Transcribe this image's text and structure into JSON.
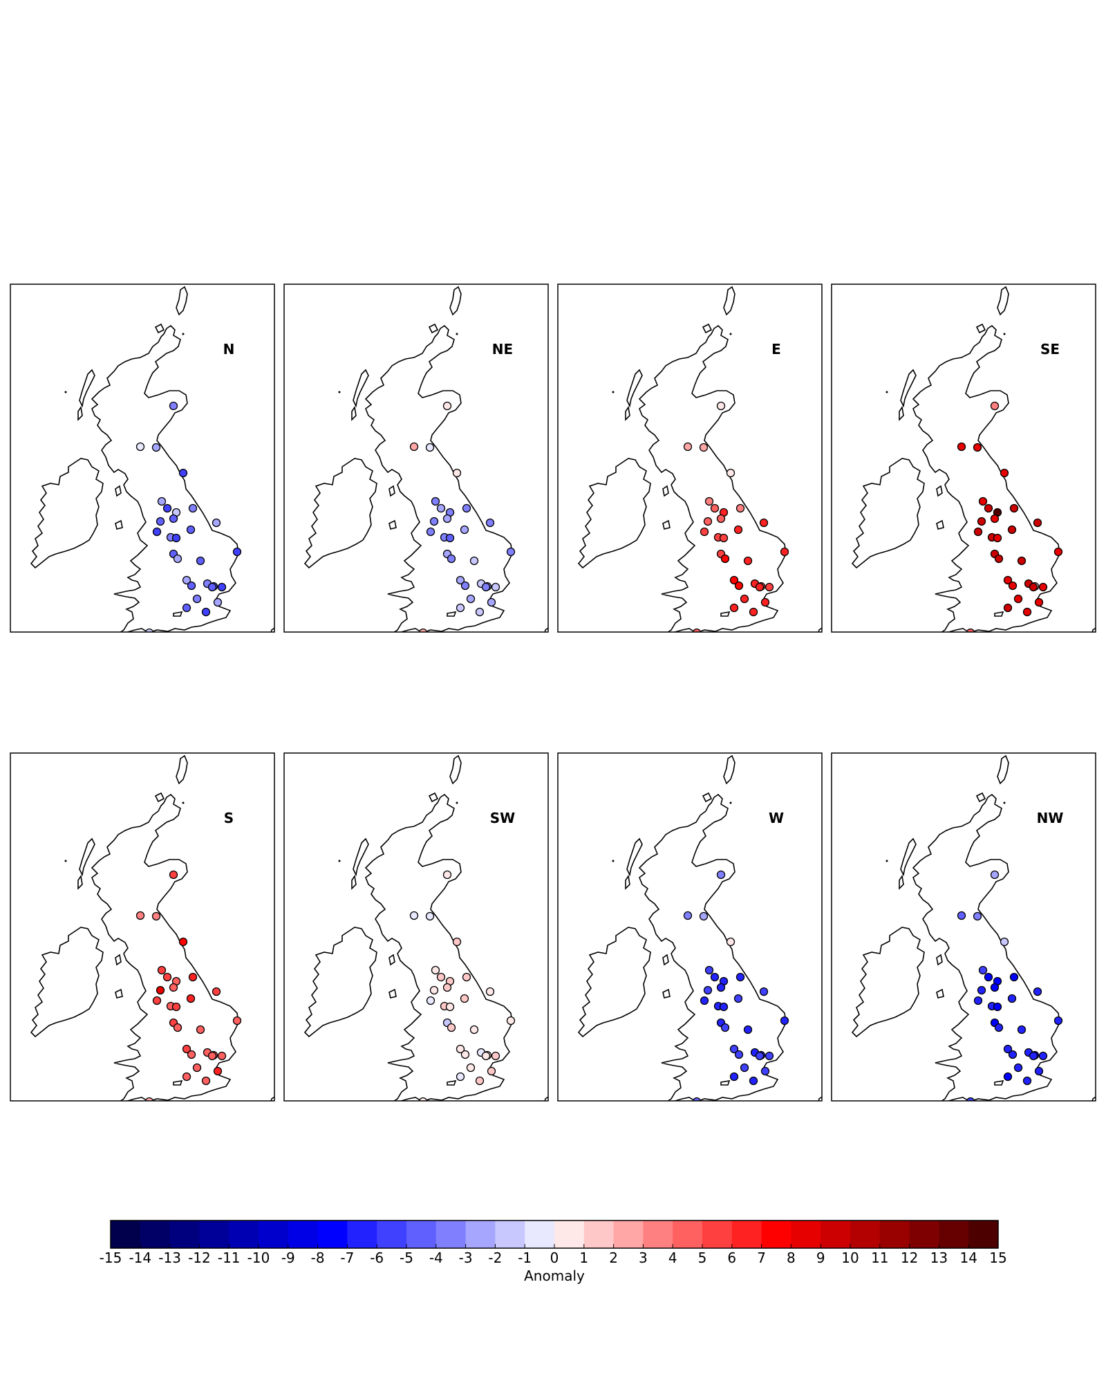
{
  "panels": [
    {
      "label": "N",
      "anomalies": [
        -4,
        -1,
        -3,
        -6,
        -3,
        -6,
        -2,
        -5,
        -5,
        -4,
        -6,
        -4,
        -6,
        -5,
        -3,
        -6,
        -5,
        -3,
        -5,
        -3,
        -5,
        -4,
        -5,
        -6,
        -5,
        -4,
        -5,
        -6,
        -3,
        -2
      ]
    },
    {
      "label": "NE",
      "anomalies": [
        0,
        2,
        -1,
        0,
        -4,
        -3,
        -4,
        -3,
        -4,
        -4,
        -4,
        -4,
        -5,
        -3,
        -4,
        -4,
        -3,
        -4,
        -2,
        -3,
        -4,
        -2,
        -3,
        -2,
        -4,
        -3,
        -2,
        -2,
        -3,
        2
      ]
    },
    {
      "label": "E",
      "anomalies": [
        0,
        2,
        2,
        0,
        3,
        4,
        6,
        4,
        4,
        3,
        5,
        5,
        5,
        6,
        6,
        6,
        5,
        7,
        6,
        7,
        7,
        6,
        4,
        5,
        6,
        6,
        6,
        6,
        6,
        4
      ]
    },
    {
      "label": "SE",
      "anomalies": [
        3,
        8,
        8,
        8,
        8,
        9,
        15,
        8,
        9,
        9,
        9,
        9,
        8,
        9,
        9,
        8,
        9,
        9,
        9,
        8,
        8,
        9,
        0,
        8,
        9,
        8,
        9,
        8,
        8,
        4
      ]
    },
    {
      "label": "S",
      "anomalies": [
        5,
        3,
        3,
        7,
        5,
        5,
        4,
        4,
        8,
        6,
        5,
        4,
        5,
        6,
        5,
        4,
        5,
        4,
        4,
        5,
        4,
        4,
        4,
        4,
        4,
        4,
        4,
        4,
        6,
        2
      ]
    },
    {
      "label": "SW",
      "anomalies": [
        0,
        -1,
        -1,
        1,
        0,
        1,
        1,
        1,
        0,
        1,
        -1,
        1,
        0,
        1,
        0,
        0,
        -2,
        1,
        0,
        0,
        0,
        -1,
        0,
        1,
        0,
        0,
        -1,
        1,
        1,
        0
      ]
    },
    {
      "label": "W",
      "anomalies": [
        -4,
        -4,
        -3,
        0,
        -6,
        -7,
        -7,
        -7,
        -6,
        -7,
        -7,
        -7,
        -7,
        -6,
        -6,
        -7,
        -7,
        -6,
        -7,
        -6,
        -6,
        -7,
        -7,
        -6,
        -6,
        -6,
        -7,
        -7,
        -6,
        -5
      ]
    },
    {
      "label": "NW",
      "anomalies": [
        -3,
        -5,
        -4,
        -2,
        -6,
        -8,
        -8,
        -8,
        -7,
        -8,
        -7,
        -7,
        -8,
        -7,
        -7,
        -7,
        -8,
        -7,
        -7,
        -7,
        -7,
        -7,
        -8,
        -7,
        -7,
        -7,
        -8,
        -7,
        -7,
        -6
      ]
    }
  ],
  "colorbar": {
    "ticks": [
      "-15",
      "-14",
      "-13",
      "-12",
      "-11",
      "-10",
      "-9",
      "-8",
      "-7",
      "-6",
      "-5",
      "-4",
      "-3",
      "-2",
      "-1",
      "0",
      "1",
      "2",
      "3",
      "4",
      "5",
      "6",
      "7",
      "8",
      "9",
      "10",
      "11",
      "12",
      "13",
      "14",
      "15"
    ],
    "colors": [
      "#00004d",
      "#000066",
      "#00007f",
      "#000099",
      "#0000b3",
      "#0000cc",
      "#0000e6",
      "#0000ff",
      "#2222ff",
      "#4040ff",
      "#6060ff",
      "#8080ff",
      "#a6a6ff",
      "#c8c8ff",
      "#e8e8ff",
      "#ffe8e8",
      "#ffc8c8",
      "#ffa6a6",
      "#ff8080",
      "#ff6060",
      "#ff4040",
      "#ff2222",
      "#ff0000",
      "#e60000",
      "#cc0000",
      "#b30000",
      "#990000",
      "#7f0000",
      "#660000",
      "#4d0000"
    ],
    "label": "Anomaly"
  },
  "chart_data": {
    "type": "scatter",
    "title": "",
    "xlabel": "",
    "ylabel": "",
    "colorbar_label": "Anomaly",
    "colorbar_range": [
      -15,
      15
    ],
    "colorbar_step": 1,
    "panels": [
      "N",
      "NE",
      "E",
      "SE",
      "S",
      "SW",
      "W",
      "NW"
    ],
    "grid": false
  }
}
